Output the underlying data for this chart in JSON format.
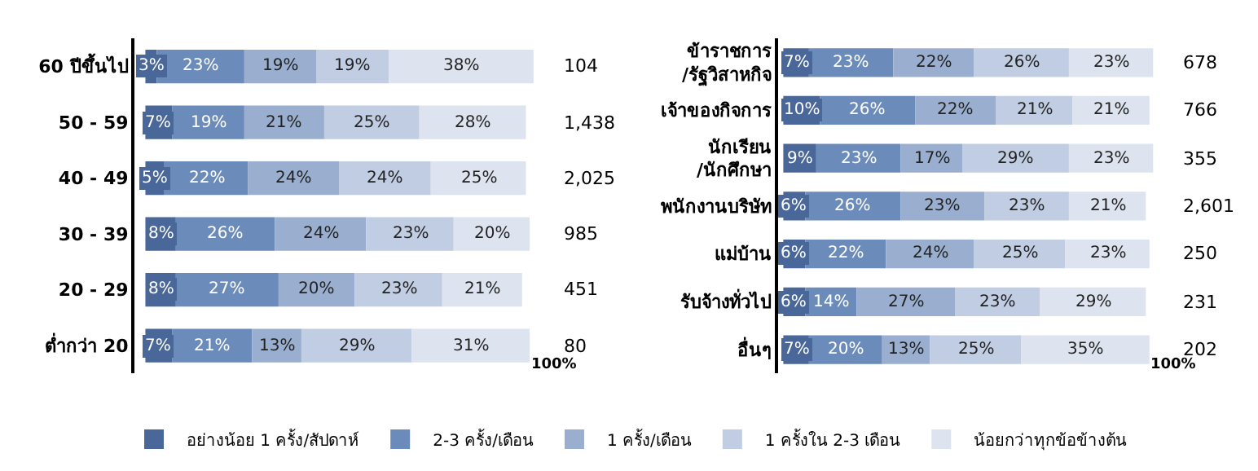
{
  "chart_data": [
    {
      "type": "bar",
      "orientation": "horizontal",
      "stacked": true,
      "tick_labels": "y",
      "legend": "bottom",
      "categories": [
        "60 ปีขึ้นไป",
        "50 - 59",
        "40 - 49",
        "30 - 39",
        "20 - 29",
        "ต่ำกว่า 20"
      ],
      "series": [
        {
          "name": "อย่างน้อย 1 ครั้ง/สัปดาห์",
          "color": "#4a6799",
          "values": [
            3,
            7,
            5,
            8,
            8,
            7
          ],
          "value_labels": [
            "3%",
            "7%",
            "5%",
            "8%",
            "8%",
            "7%"
          ]
        },
        {
          "name": "2-3 ครั้ง/เดือน",
          "color": "#6b8cba",
          "values": [
            23,
            19,
            22,
            26,
            27,
            21
          ],
          "value_labels": [
            "23%",
            "19%",
            "22%",
            "26%",
            "27%",
            "21%"
          ]
        },
        {
          "name": "1 ครั้ง/เดือน",
          "color": "#9aafd0",
          "values": [
            19,
            21,
            24,
            24,
            20,
            13
          ],
          "value_labels": [
            "19%",
            "21%",
            "24%",
            "24%",
            "20%",
            "13%"
          ]
        },
        {
          "name": "1 ครั้งใน 2-3 เดือน",
          "color": "#c0cde2",
          "values": [
            19,
            25,
            24,
            23,
            23,
            29
          ],
          "value_labels": [
            "19%",
            "25%",
            "24%",
            "23%",
            "23%",
            "29%"
          ]
        },
        {
          "name": "น้อยกว่าทุกข้อข้างต้น",
          "color": "#dde3ef",
          "values": [
            38,
            28,
            25,
            20,
            21,
            31
          ],
          "value_labels": [
            "38%",
            "28%",
            "25%",
            "20%",
            "21%",
            "31%"
          ]
        }
      ],
      "annotations": [
        "104",
        "1,438",
        "2,025",
        "985",
        "451",
        "80",
        "100%"
      ]
    },
    {
      "type": "bar",
      "orientation": "horizontal",
      "stacked": true,
      "tick_labels": "y",
      "legend": "bottom",
      "categories": [
        "ข้าราชการ\n/รัฐวิสาหกิจ",
        "เจ้าของกิจการ",
        "นักเรียน\n/นักศึกษา",
        "พนักงานบริษัท",
        "แม่บ้าน",
        "รับจ้างทั่วไป",
        "อื่นๆ"
      ],
      "series": [
        {
          "name": "อย่างน้อย 1 ครั้ง/สัปดาห์",
          "color": "#4a6799",
          "values": [
            7,
            10,
            9,
            6,
            6,
            6,
            7
          ],
          "value_labels": [
            "7%",
            "10%",
            "9%",
            "6%",
            "6%",
            "6%",
            "7%"
          ]
        },
        {
          "name": "2-3 ครั้ง/เดือน",
          "color": "#6b8cba",
          "values": [
            23,
            26,
            23,
            26,
            22,
            14,
            20
          ],
          "value_labels": [
            "23%",
            "26%",
            "23%",
            "26%",
            "22%",
            "14%",
            "20%"
          ]
        },
        {
          "name": "1 ครั้ง/เดือน",
          "color": "#9aafd0",
          "values": [
            22,
            22,
            17,
            23,
            24,
            27,
            13
          ],
          "value_labels": [
            "22%",
            "22%",
            "17%",
            "23%",
            "24%",
            "27%",
            "13%"
          ]
        },
        {
          "name": "1 ครั้งใน 2-3 เดือน",
          "color": "#c0cde2",
          "values": [
            26,
            21,
            29,
            23,
            25,
            23,
            25
          ],
          "value_labels": [
            "26%",
            "21%",
            "29%",
            "23%",
            "25%",
            "23%",
            "25%"
          ]
        },
        {
          "name": "น้อยกว่าทุกข้อข้างต้น",
          "color": "#dde3ef",
          "values": [
            23,
            21,
            23,
            21,
            23,
            29,
            35
          ],
          "value_labels": [
            "23%",
            "21%",
            "23%",
            "21%",
            "23%",
            "29%",
            "35%"
          ]
        }
      ],
      "annotations": [
        "678",
        "766",
        "355",
        "2,601",
        "250",
        "231",
        "202",
        "100%"
      ]
    }
  ]
}
